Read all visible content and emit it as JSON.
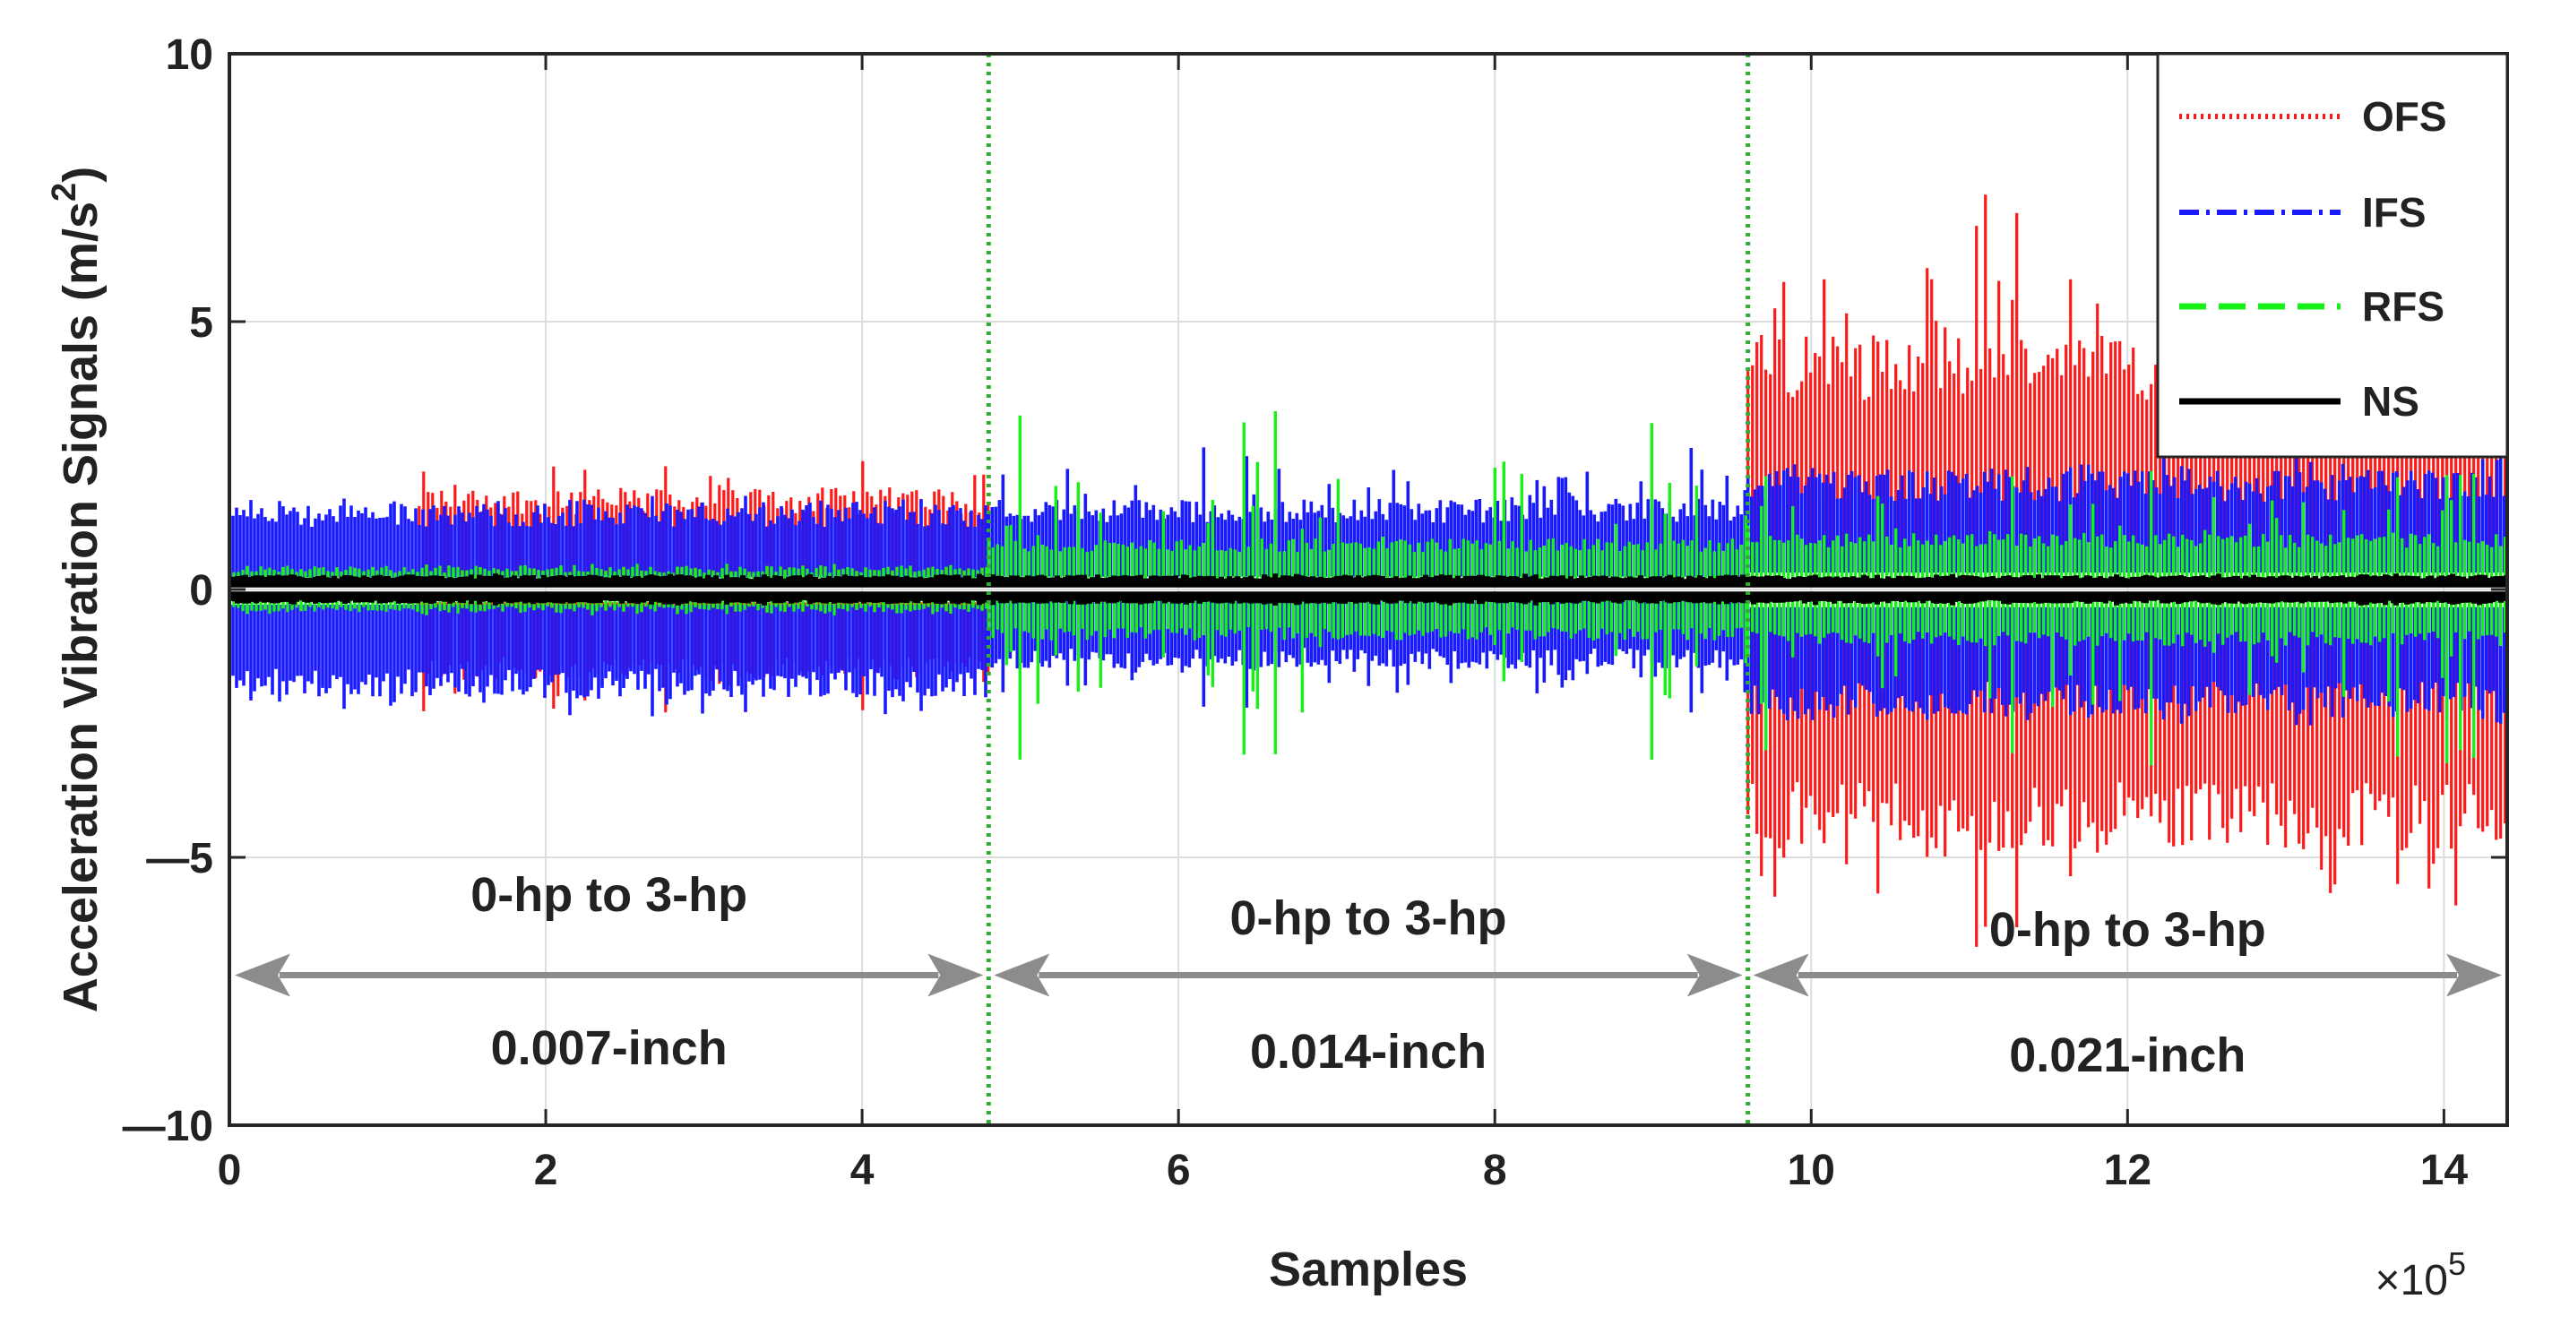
{
  "chart_data": {
    "type": "line",
    "title": "",
    "xlabel": "Samples",
    "ylabel": "Acceleration Vibration Signals (m/s",
    "ylabel_superscript": "2",
    "ylabel_suffix": ")",
    "x_multiplier_base": "×10",
    "x_multiplier_exp": "5",
    "xlim": [
      0,
      14.4
    ],
    "ylim": [
      -10,
      10
    ],
    "xticks": [
      0,
      2,
      4,
      6,
      8,
      10,
      12,
      14
    ],
    "xtick_labels": [
      "0",
      "2",
      "4",
      "6",
      "8",
      "10",
      "12",
      "14"
    ],
    "yticks": [
      -10,
      -5,
      0,
      5,
      10
    ],
    "ytick_labels": [
      "—10",
      "—5",
      "0",
      "5",
      "10"
    ],
    "grid": true,
    "legend_position": "top-right",
    "colors": {
      "OFS": "#ff1a1a",
      "IFS": "#1a1aff",
      "RFS": "#19f019",
      "NS": "#000000",
      "divider": "#33aa33",
      "arrow": "#8c8c8c"
    },
    "series": [
      {
        "name": "OFS",
        "style": "dotted",
        "segments": [
          {
            "x_range": [
              1.2,
              4.8
            ],
            "amplitude_pos": 2.4,
            "amplitude_neg": -2.3,
            "typical_pos": 1.8,
            "typical_neg": -1.6
          },
          {
            "x_range": [
              9.6,
              14.4
            ],
            "amplitude_pos": 7.4,
            "amplitude_neg": -6.9,
            "typical_pos": 4.5,
            "typical_neg": -4.6
          }
        ]
      },
      {
        "name": "IFS",
        "style": "dash-dot",
        "segments": [
          {
            "x_range": [
              0,
              4.8
            ],
            "amplitude_pos": 1.8,
            "amplitude_neg": -2.4,
            "typical_pos": 1.5,
            "typical_neg": -1.9
          },
          {
            "x_range": [
              4.8,
              9.6
            ],
            "amplitude_pos": 2.7,
            "amplitude_neg": -2.3,
            "typical_pos": 1.6,
            "typical_neg": -1.4
          },
          {
            "x_range": [
              9.6,
              14.4
            ],
            "amplitude_pos": 2.5,
            "amplitude_neg": -2.6,
            "typical_pos": 2.1,
            "typical_neg": -2.2
          }
        ]
      },
      {
        "name": "RFS",
        "style": "dashed",
        "segments": [
          {
            "x_range": [
              0,
              4.8
            ],
            "amplitude_pos": 0.5,
            "amplitude_neg": -0.5,
            "typical_pos": 0.4,
            "typical_neg": -0.4
          },
          {
            "x_range": [
              4.8,
              9.6
            ],
            "amplitude_pos": 3.4,
            "amplitude_neg": -3.3,
            "typical_pos": 0.9,
            "typical_neg": -0.9
          },
          {
            "x_range": [
              9.6,
              14.4
            ],
            "amplitude_pos": 2.3,
            "amplitude_neg": -3.3,
            "typical_pos": 1.0,
            "typical_neg": -1.0
          }
        ]
      },
      {
        "name": "NS",
        "style": "solid",
        "segments": [
          {
            "x_range": [
              0,
              14.4
            ],
            "amplitude_pos": 0.3,
            "amplitude_neg": -0.3,
            "typical_pos": 0.25,
            "typical_neg": -0.25
          }
        ]
      }
    ],
    "dividers_x": [
      4.8,
      9.6
    ],
    "regions": [
      {
        "x_range": [
          0,
          4.8
        ],
        "load_label": "0-hp to 3-hp",
        "size_label": "0.007-inch"
      },
      {
        "x_range": [
          4.8,
          9.6
        ],
        "load_label": "0-hp to 3-hp",
        "size_label": "0.014-inch"
      },
      {
        "x_range": [
          9.6,
          14.4
        ],
        "load_label": "0-hp to 3-hp",
        "size_label": "0.021-inch"
      }
    ],
    "arrow_y": -7.2
  }
}
